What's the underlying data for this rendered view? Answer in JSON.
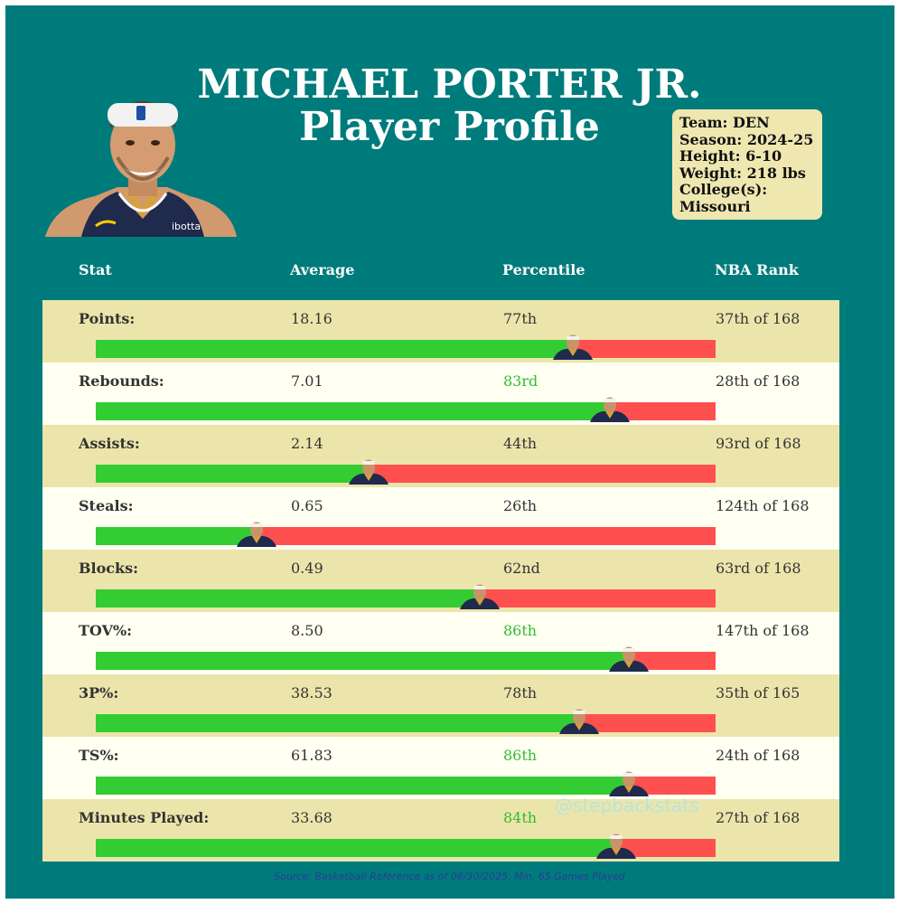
{
  "title": "MICHAEL PORTER JR.",
  "subtitle": "Player Profile",
  "info": {
    "team": "Team: DEN",
    "season": "Season: 2024-25",
    "height": "Height: 6-10",
    "weight": "Weight: 218 lbs",
    "college_label": "College(s):",
    "college": "Missouri"
  },
  "table": {
    "headers": [
      "Stat",
      "Average",
      "Percentile",
      "NBA Rank"
    ]
  },
  "chart_data": {
    "type": "table",
    "bar_range": [
      0,
      100
    ],
    "rows": [
      {
        "stat": "Points:",
        "average": "18.16",
        "percentile_label": "77th",
        "percentile": 77,
        "rank": "37th of 168",
        "highlight": false
      },
      {
        "stat": "Rebounds:",
        "average": "7.01",
        "percentile_label": "83rd",
        "percentile": 83,
        "rank": "28th of 168",
        "highlight": true
      },
      {
        "stat": "Assists:",
        "average": "2.14",
        "percentile_label": "44th",
        "percentile": 44,
        "rank": "93rd of 168",
        "highlight": false
      },
      {
        "stat": "Steals:",
        "average": "0.65",
        "percentile_label": "26th",
        "percentile": 26,
        "rank": "124th of 168",
        "highlight": false
      },
      {
        "stat": "Blocks:",
        "average": "0.49",
        "percentile_label": "62nd",
        "percentile": 62,
        "rank": "63rd of 168",
        "highlight": false
      },
      {
        "stat": "TOV%:",
        "average": "8.50",
        "percentile_label": "86th",
        "percentile": 86,
        "rank": "147th of 168",
        "highlight": true
      },
      {
        "stat": "3P%:",
        "average": "38.53",
        "percentile_label": "78th",
        "percentile": 78,
        "rank": "35th of 165",
        "highlight": false
      },
      {
        "stat": "TS%:",
        "average": "61.83",
        "percentile_label": "86th",
        "percentile": 86,
        "rank": "24th of 168",
        "highlight": true
      },
      {
        "stat": "Minutes Played:",
        "average": "33.68",
        "percentile_label": "84th",
        "percentile": 84,
        "rank": "27th of 168",
        "highlight": true
      }
    ]
  },
  "watermark": "@stepbackstats",
  "source": "Source: Basketball Reference as of 06/30/2025. Min. 65 Games Played",
  "colors": {
    "background": "#007b7b",
    "row_odd": "#ece5ab",
    "row_even": "#fffff2",
    "bar_good": "#33cc33",
    "bar_bad": "#ff5050",
    "highlight_text": "#33bb33",
    "info_box": "#efe7b0"
  }
}
